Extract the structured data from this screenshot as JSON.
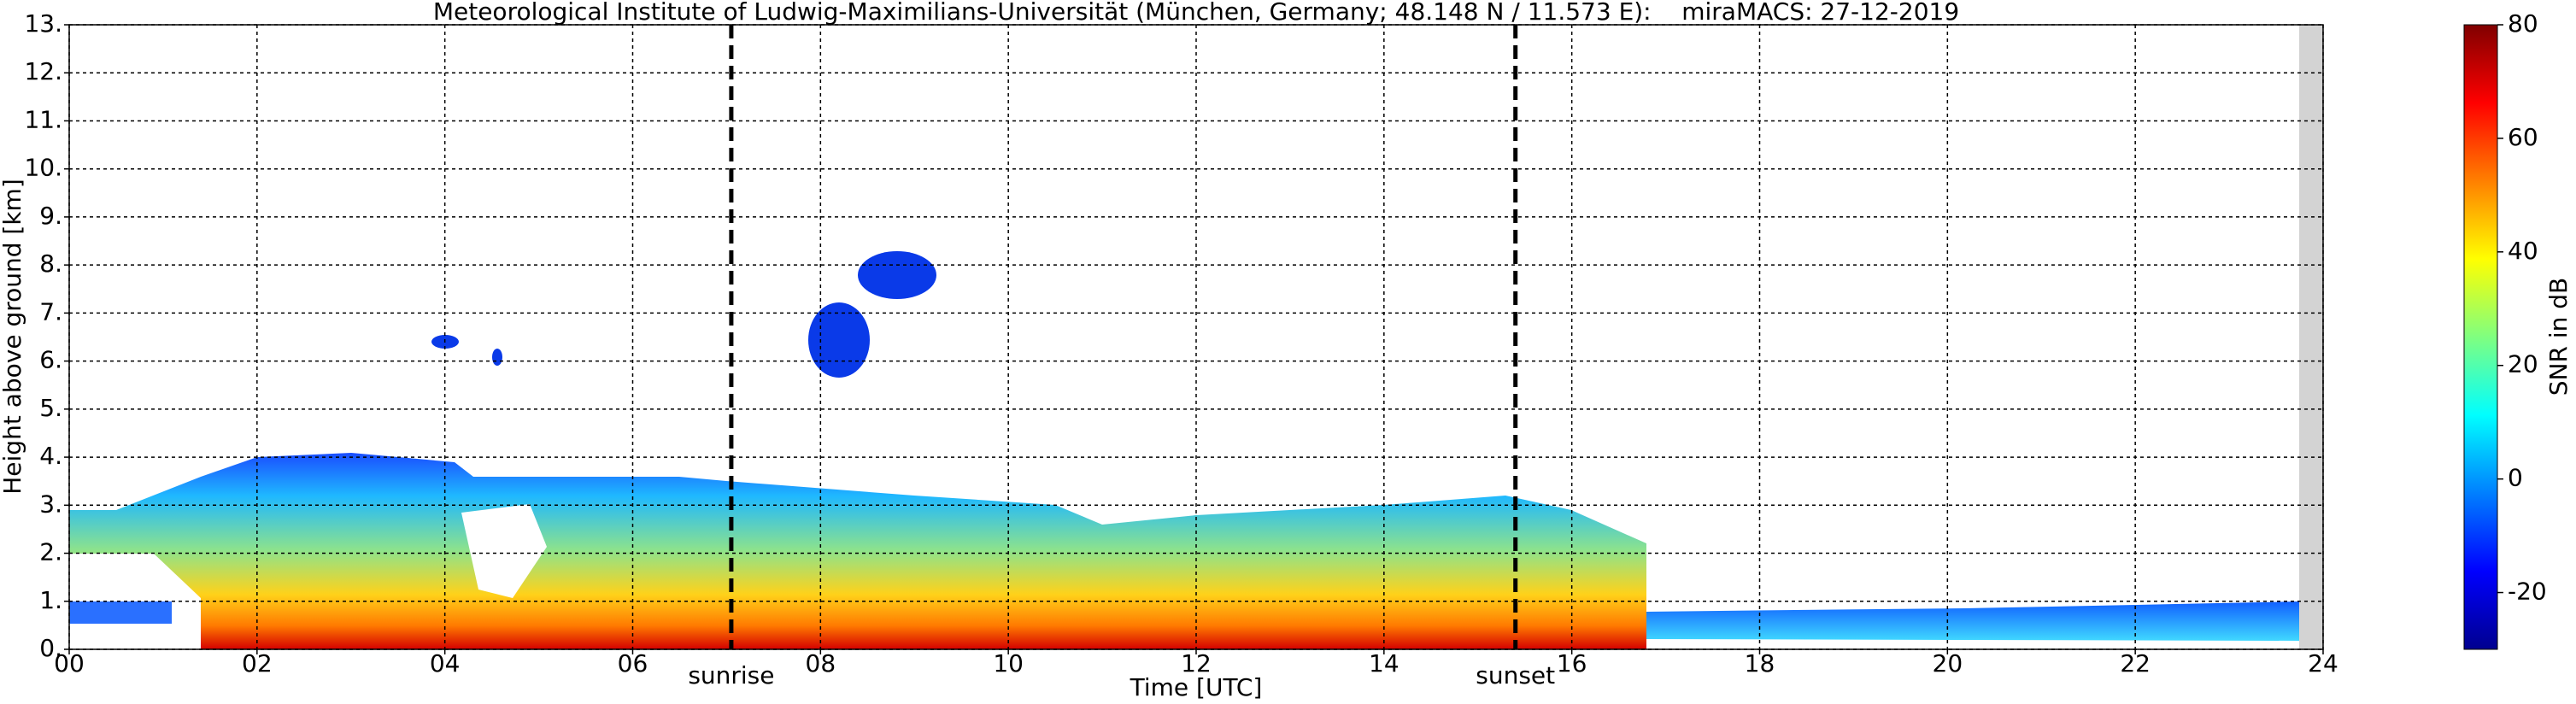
{
  "chart_data": {
    "type": "heatmap",
    "title": "Meteorological Institute of Ludwig-Maximilians-Universität (München, Germany; 48.148 N / 11.573 E):    miraMACS: 27-12-2019",
    "x_label": "Time [UTC]",
    "y_label": "Height above ground [km]",
    "xlim": [
      0,
      24
    ],
    "xticks": [
      {
        "value": 0,
        "label": "00"
      },
      {
        "value": 2,
        "label": "02"
      },
      {
        "value": 4,
        "label": "04"
      },
      {
        "value": 6,
        "label": "06"
      },
      {
        "value": 8,
        "label": "08"
      },
      10,
      12,
      14,
      16,
      18,
      20,
      22,
      24
    ],
    "ylim": [
      0,
      13
    ],
    "yticks": [
      {
        "value": 0,
        "label": "0."
      },
      {
        "value": 1,
        "label": "1."
      },
      {
        "value": 2,
        "label": "2."
      },
      {
        "value": 3,
        "label": "3."
      },
      {
        "value": 4,
        "label": "4."
      },
      {
        "value": 5,
        "label": "5."
      },
      {
        "value": 6,
        "label": "6."
      },
      {
        "value": 7,
        "label": "7."
      },
      {
        "value": 8,
        "label": "8."
      },
      {
        "value": 9,
        "label": "9."
      },
      {
        "value": 10,
        "label": "10."
      },
      {
        "value": 11,
        "label": "11."
      },
      {
        "value": 12,
        "label": "12."
      },
      {
        "value": 13,
        "label": "13."
      }
    ],
    "grid": true,
    "annotations": [
      {
        "text": "sunrise",
        "x": 7.05
      },
      {
        "text": "sunset",
        "x": 15.4
      }
    ],
    "colorbar": {
      "label": "SNR in dB",
      "colormap": "jet",
      "clim": [
        -30,
        80
      ],
      "ticks": [
        -20,
        0,
        20,
        40,
        60,
        80
      ]
    }
  }
}
